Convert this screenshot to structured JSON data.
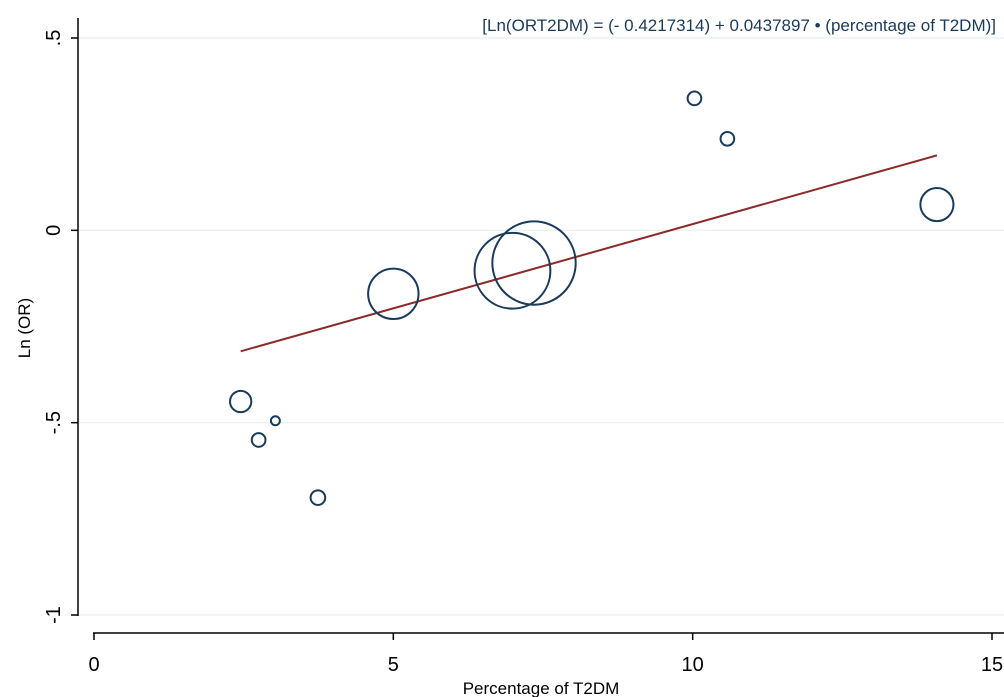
{
  "chart_data": {
    "type": "scatter",
    "title": "",
    "annotation": "[Ln(ORT2DM) = (- 0.4217314) + 0.0437897 • (percentage of T2DM)]",
    "xlabel": "Percentage of T2DM",
    "ylabel": "Ln (OR)",
    "xlim": [
      0,
      15
    ],
    "ylim": [
      -1,
      0.5
    ],
    "x_ticks": [
      {
        "value": 0,
        "label": "0"
      },
      {
        "value": 5,
        "label": "5"
      },
      {
        "value": 10,
        "label": "10"
      },
      {
        "value": 15,
        "label": "15"
      }
    ],
    "y_ticks": [
      {
        "value": -1,
        "label": "-1"
      },
      {
        "value": -0.5,
        "label": "-.5"
      },
      {
        "value": 0,
        "label": "0"
      },
      {
        "value": 0.5,
        "label": ".5"
      }
    ],
    "grid": "horizontal",
    "points": [
      {
        "x": 2.45,
        "y": -0.445,
        "weight": 3.4
      },
      {
        "x": 2.75,
        "y": -0.545,
        "weight": 1.4
      },
      {
        "x": 3.03,
        "y": -0.495,
        "weight": 0.6
      },
      {
        "x": 3.74,
        "y": -0.695,
        "weight": 1.6
      },
      {
        "x": 5.0,
        "y": -0.165,
        "weight": 19
      },
      {
        "x": 6.99,
        "y": -0.105,
        "weight": 43
      },
      {
        "x": 7.35,
        "y": -0.085,
        "weight": 52
      },
      {
        "x": 10.03,
        "y": 0.343,
        "weight": 1.4
      },
      {
        "x": 10.58,
        "y": 0.238,
        "weight": 1.4
      },
      {
        "x": 14.08,
        "y": 0.067,
        "weight": 8.2
      }
    ],
    "fit_line": {
      "intercept": -0.4217314,
      "slope": 0.0437897,
      "x_range": [
        2.45,
        14.08
      ]
    },
    "colors": {
      "marker": "#1a3a5c",
      "fit": "#8b2a2a",
      "grid": "#eaf2f3",
      "axis": "#000000"
    }
  }
}
